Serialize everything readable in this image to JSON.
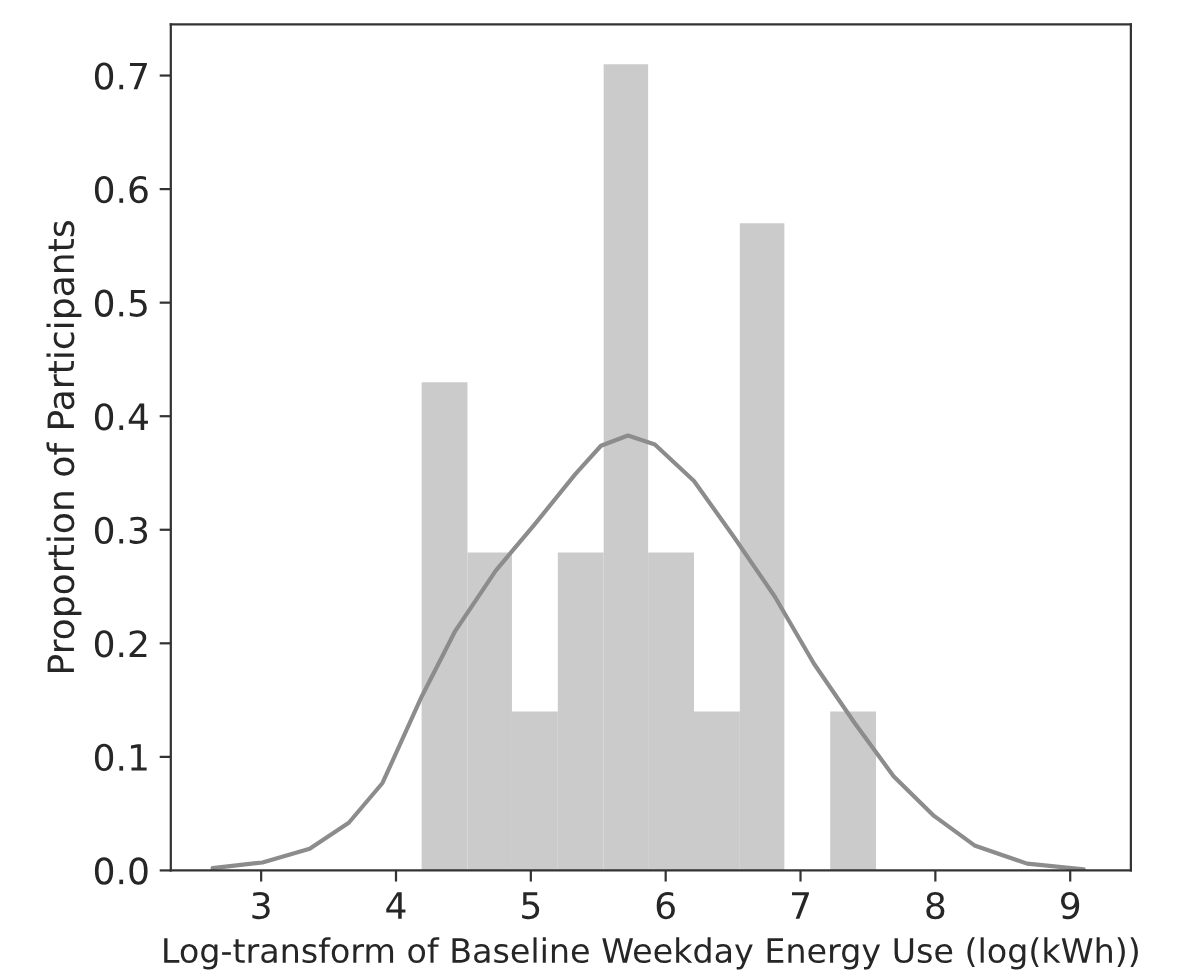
{
  "chart_data": {
    "type": "histogram",
    "xlabel": "Log-transform of Baseline Weekday Energy Use (log(kWh))",
    "ylabel": "Proportion of Participants",
    "bins": [
      4.19,
      4.53,
      4.86,
      5.2,
      5.54,
      5.87,
      6.21,
      6.55,
      6.88,
      7.22,
      7.56
    ],
    "values": [
      0.43,
      0.28,
      0.14,
      0.28,
      0.71,
      0.28,
      0.14,
      0.57,
      0,
      0.14
    ],
    "color": "#cbcbcb",
    "series": [
      {
        "type": "line",
        "color": "#8c8c8c",
        "x": [
          2.64,
          3.01,
          3.36,
          3.65,
          3.9,
          4.19,
          4.44,
          4.74,
          5.03,
          5.33,
          5.52,
          5.72,
          5.92,
          6.21,
          6.51,
          6.81,
          7.1,
          7.4,
          7.69,
          7.99,
          8.29,
          8.68,
          9.1
        ],
        "values": [
          0.002,
          0.007,
          0.019,
          0.042,
          0.077,
          0.153,
          0.211,
          0.264,
          0.305,
          0.349,
          0.374,
          0.383,
          0.375,
          0.343,
          0.293,
          0.241,
          0.182,
          0.13,
          0.083,
          0.048,
          0.022,
          0.006,
          0.001
        ]
      }
    ],
    "xlim": [
      2.33,
      9.45
    ],
    "ylim": [
      0,
      0.745
    ],
    "xticks": [
      3,
      4,
      5,
      6,
      7,
      8,
      9
    ],
    "yticks": [
      {
        "value": 0,
        "label": "0.0"
      },
      0.1,
      0.2,
      0.3,
      0.4,
      0.5,
      0.6,
      0.7
    ],
    "grid": false,
    "legend": false
  }
}
